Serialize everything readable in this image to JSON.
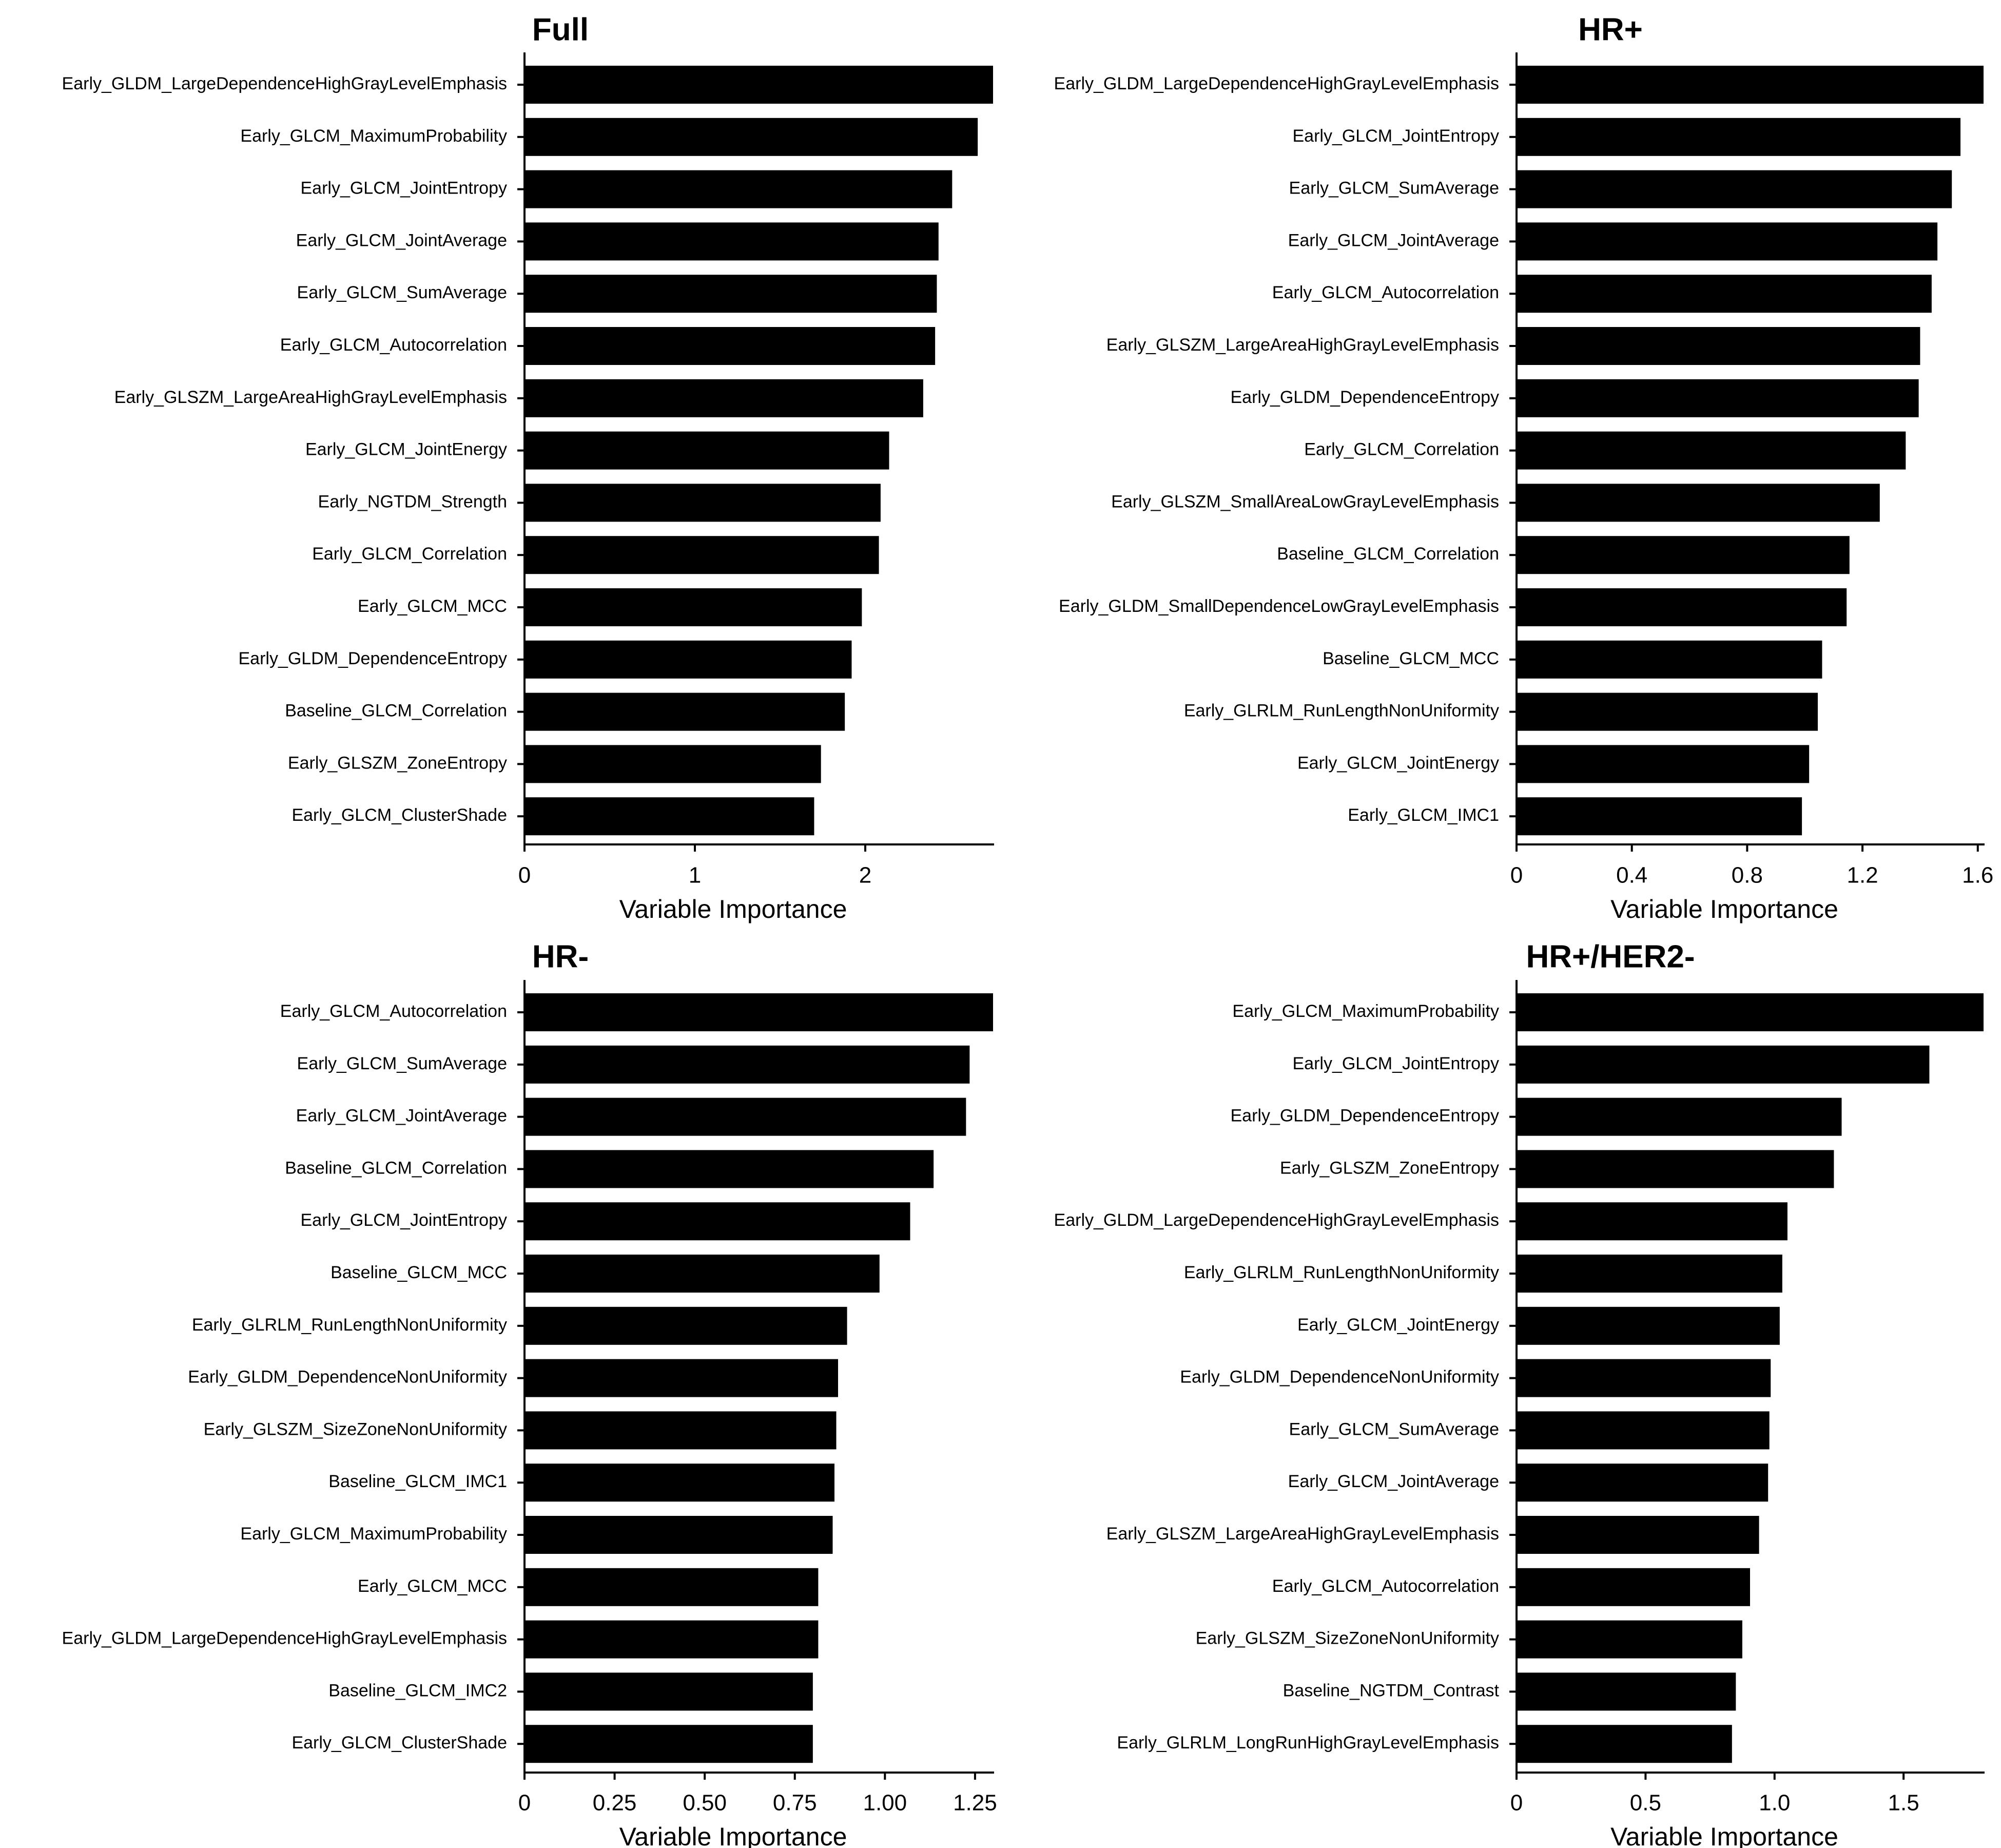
{
  "chart_data": [
    {
      "type": "bar",
      "orientation": "horizontal",
      "title": "Full",
      "xlabel": "Variable Importance",
      "ylabel": "",
      "xlim": [
        0,
        2.75
      ],
      "xticks": [
        0,
        1,
        2
      ],
      "xtick_labels": [
        "0",
        "1",
        "2"
      ],
      "categories": [
        "Early_GLDM_LargeDependenceHighGrayLevelEmphasis",
        "Early_GLCM_MaximumProbability",
        "Early_GLCM_JointEntropy",
        "Early_GLCM_JointAverage",
        "Early_GLCM_SumAverage",
        "Early_GLCM_Autocorrelation",
        "Early_GLSZM_LargeAreaHighGrayLevelEmphasis",
        "Early_GLCM_JointEnergy",
        "Early_NGTDM_Strength",
        "Early_GLCM_Correlation",
        "Early_GLCM_MCC",
        "Early_GLDM_DependenceEntropy",
        "Baseline_GLCM_Correlation",
        "Early_GLSZM_ZoneEntropy",
        "Early_GLCM_ClusterShade"
      ],
      "values": [
        2.75,
        2.66,
        2.51,
        2.43,
        2.42,
        2.41,
        2.34,
        2.14,
        2.09,
        2.08,
        1.98,
        1.92,
        1.88,
        1.74,
        1.7
      ]
    },
    {
      "type": "bar",
      "orientation": "horizontal",
      "title": "HR+",
      "xlabel": "Variable Importance",
      "ylabel": "",
      "xlim": [
        0,
        1.62
      ],
      "xticks": [
        0,
        0.4,
        0.8,
        1.2,
        1.6
      ],
      "xtick_labels": [
        "0",
        "0.4",
        "0.8",
        "1.2",
        "1.6"
      ],
      "categories": [
        "Early_GLDM_LargeDependenceHighGrayLevelEmphasis",
        "Early_GLCM_JointEntropy",
        "Early_GLCM_SumAverage",
        "Early_GLCM_JointAverage",
        "Early_GLCM_Autocorrelation",
        "Early_GLSZM_LargeAreaHighGrayLevelEmphasis",
        "Early_GLDM_DependenceEntropy",
        "Early_GLCM_Correlation",
        "Early_GLSZM_SmallAreaLowGrayLevelEmphasis",
        "Baseline_GLCM_Correlation",
        "Early_GLDM_SmallDependenceLowGrayLevelEmphasis",
        "Baseline_GLCM_MCC",
        "Early_GLRLM_RunLengthNonUniformity",
        "Early_GLCM_JointEnergy",
        "Early_GLCM_IMC1"
      ],
      "values": [
        1.62,
        1.54,
        1.51,
        1.46,
        1.44,
        1.4,
        1.395,
        1.35,
        1.26,
        1.155,
        1.145,
        1.06,
        1.045,
        1.015,
        0.99
      ]
    },
    {
      "type": "bar",
      "orientation": "horizontal",
      "title": "HR-",
      "xlabel": "Variable Importance",
      "ylabel": "",
      "xlim": [
        0,
        1.3
      ],
      "xticks": [
        0,
        0.25,
        0.5,
        0.75,
        1.0,
        1.25
      ],
      "xtick_labels": [
        "0",
        "0.25",
        "0.50",
        "0.75",
        "1.00",
        "1.25"
      ],
      "categories": [
        "Early_GLCM_Autocorrelation",
        "Early_GLCM_SumAverage",
        "Early_GLCM_JointAverage",
        "Baseline_GLCM_Correlation",
        "Early_GLCM_JointEntropy",
        "Baseline_GLCM_MCC",
        "Early_GLRLM_RunLengthNonUniformity",
        "Early_GLDM_DependenceNonUniformity",
        "Early_GLSZM_SizeZoneNonUniformity",
        "Baseline_GLCM_IMC1",
        "Early_GLCM_MaximumProbability",
        "Early_GLCM_MCC",
        "Early_GLDM_LargeDependenceHighGrayLevelEmphasis",
        "Baseline_GLCM_IMC2",
        "Early_GLCM_ClusterShade"
      ],
      "values": [
        1.3,
        1.235,
        1.225,
        1.135,
        1.07,
        0.985,
        0.895,
        0.87,
        0.865,
        0.86,
        0.855,
        0.815,
        0.815,
        0.8,
        0.8
      ]
    },
    {
      "type": "bar",
      "orientation": "horizontal",
      "title": "HR+/HER2-",
      "xlabel": "Variable Importance",
      "ylabel": "",
      "xlim": [
        0,
        1.81
      ],
      "xticks": [
        0,
        0.5,
        1.0,
        1.5
      ],
      "xtick_labels": [
        "0",
        "0.5",
        "1.0",
        "1.5"
      ],
      "categories": [
        "Early_GLCM_MaximumProbability",
        "Early_GLCM_JointEntropy",
        "Early_GLDM_DependenceEntropy",
        "Early_GLSZM_ZoneEntropy",
        "Early_GLDM_LargeDependenceHighGrayLevelEmphasis",
        "Early_GLRLM_RunLengthNonUniformity",
        "Early_GLCM_JointEnergy",
        "Early_GLDM_DependenceNonUniformity",
        "Early_GLCM_SumAverage",
        "Early_GLCM_JointAverage",
        "Early_GLSZM_LargeAreaHighGrayLevelEmphasis",
        "Early_GLCM_Autocorrelation",
        "Early_GLSZM_SizeZoneNonUniformity",
        "Baseline_NGTDM_Contrast",
        "Early_GLRLM_LongRunHighGrayLevelEmphasis"
      ],
      "values": [
        1.81,
        1.6,
        1.26,
        1.23,
        1.05,
        1.03,
        1.02,
        0.985,
        0.98,
        0.975,
        0.94,
        0.905,
        0.875,
        0.85,
        0.835
      ]
    }
  ]
}
